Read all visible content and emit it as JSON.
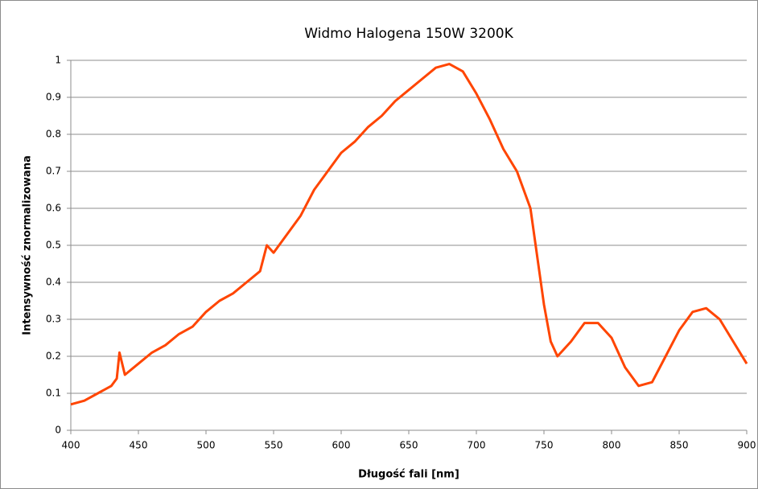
{
  "chart_data": {
    "type": "line",
    "title": "Widmo Halogena 150W 3200K",
    "xlabel": "Długość fali [nm]",
    "ylabel": "Intensywność znormalizowana",
    "x": [
      400,
      410,
      420,
      430,
      434,
      436,
      440,
      450,
      460,
      470,
      480,
      490,
      500,
      510,
      520,
      530,
      540,
      545,
      550,
      560,
      570,
      580,
      590,
      600,
      610,
      620,
      630,
      640,
      650,
      660,
      670,
      680,
      690,
      700,
      710,
      720,
      730,
      740,
      750,
      755,
      760,
      770,
      780,
      790,
      800,
      810,
      820,
      830,
      840,
      850,
      860,
      870,
      880,
      890,
      900
    ],
    "series": [
      {
        "name": "Widmo",
        "color": "#ff4500",
        "values": [
          0.07,
          0.08,
          0.1,
          0.12,
          0.14,
          0.21,
          0.15,
          0.18,
          0.21,
          0.23,
          0.26,
          0.28,
          0.32,
          0.35,
          0.37,
          0.4,
          0.43,
          0.5,
          0.48,
          0.53,
          0.58,
          0.65,
          0.7,
          0.75,
          0.78,
          0.82,
          0.85,
          0.89,
          0.92,
          0.95,
          0.98,
          0.99,
          0.97,
          0.91,
          0.84,
          0.76,
          0.7,
          0.6,
          0.34,
          0.24,
          0.2,
          0.24,
          0.29,
          0.29,
          0.25,
          0.17,
          0.12,
          0.13,
          0.2,
          0.27,
          0.32,
          0.33,
          0.3,
          0.24,
          0.18
        ]
      }
    ],
    "xlim": [
      400,
      900
    ],
    "xticks": [
      400,
      450,
      500,
      550,
      600,
      650,
      700,
      750,
      800,
      850,
      900
    ],
    "ylim": [
      0,
      1
    ],
    "yticks": [
      0,
      0.1,
      0.2,
      0.3,
      0.4,
      0.5,
      0.6,
      0.7,
      0.8,
      0.9,
      1
    ],
    "grid": true
  }
}
